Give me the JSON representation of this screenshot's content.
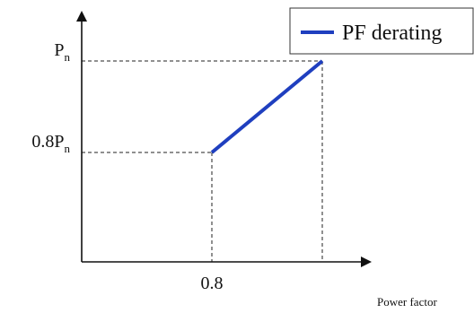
{
  "chart_data": {
    "type": "line",
    "title": "",
    "xlabel": "Power factor",
    "ylabel": "",
    "x_ticks": [
      {
        "value": 0.8,
        "label": "0.8"
      }
    ],
    "y_ticks": [
      {
        "value": 0.8,
        "label": "0.8P",
        "sub": "n"
      },
      {
        "value": 1.0,
        "label": "P",
        "sub": "n"
      }
    ],
    "xlim": [
      0.5,
      1.05
    ],
    "ylim": [
      0,
      1.08
    ],
    "grid": false,
    "legend_position": "top-right",
    "series": [
      {
        "name": "PF derating",
        "color": "#1f3fbf",
        "points": [
          {
            "x": 0.8,
            "y": 0.8
          },
          {
            "x": 1.0,
            "y": 1.0
          }
        ]
      }
    ]
  }
}
